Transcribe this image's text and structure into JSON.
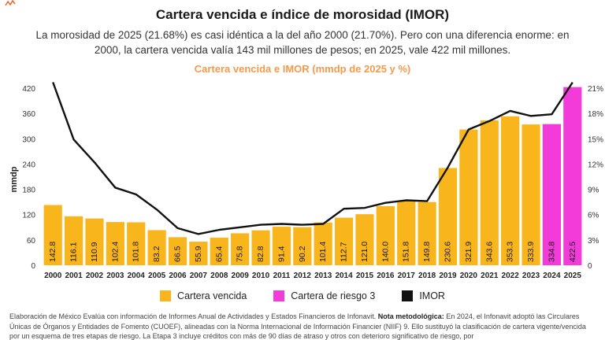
{
  "header": {
    "title": "Cartera vencida e índice de morosidad (IMOR)",
    "subtitle": "La morosidad de 2025 (21.68%) es casi idéntica a la del año 2000 (21.70%). Pero con una diferencia enorme: en 2000, la cartera vencida valía 143 mil millones de pesos; en 2025, vale 422 mil millones."
  },
  "chart_data": {
    "type": "bar",
    "title": "Cartera vencida e IMOR (mmdp de 2025 y %)",
    "ylabel": "mmdp",
    "ylim": [
      0,
      420
    ],
    "y_ticks": [
      "0",
      "60",
      "120",
      "180",
      "240",
      "300",
      "360",
      "420"
    ],
    "y2lim": [
      0,
      21
    ],
    "y2_ticks": [
      "0",
      "3%",
      "6%",
      "9%",
      "12%",
      "15%",
      "18%",
      "21%"
    ],
    "categories": [
      "2000",
      "2001",
      "2002",
      "2003",
      "2004",
      "2005",
      "2006",
      "2007",
      "2008",
      "2009",
      "2010",
      "2011",
      "2012",
      "2013",
      "2014",
      "2015",
      "2016",
      "2017",
      "2018",
      "2019",
      "2020",
      "2021",
      "2022",
      "2023",
      "2024",
      "2025"
    ],
    "series": [
      {
        "name": "Cartera vencida",
        "type": "bar",
        "color": "#f9b51c",
        "values": [
          142.8,
          116.1,
          110.9,
          102.4,
          101.8,
          83.2,
          66.5,
          55.9,
          65.4,
          75.8,
          82.8,
          91.4,
          90.2,
          101.4,
          112.7,
          121.0,
          140.0,
          151.8,
          149.8,
          230.6,
          321.9,
          343.6,
          353.3,
          333.9,
          null,
          null
        ]
      },
      {
        "name": "Cartera de riesgo 3",
        "type": "bar",
        "color": "#f23bd8",
        "values": [
          null,
          null,
          null,
          null,
          null,
          null,
          null,
          null,
          null,
          null,
          null,
          null,
          null,
          null,
          null,
          null,
          null,
          null,
          null,
          null,
          null,
          null,
          null,
          null,
          334.8,
          422.5
        ]
      },
      {
        "name": "IMOR",
        "type": "line",
        "color": "#111111",
        "axis": "right",
        "values": [
          21.7,
          14.9,
          12.2,
          9.2,
          8.4,
          6.6,
          4.4,
          3.7,
          4.2,
          4.5,
          4.8,
          4.9,
          4.8,
          4.9,
          6.7,
          6.8,
          7.4,
          7.7,
          7.6,
          11.6,
          16.1,
          17.1,
          18.3,
          17.7,
          17.9,
          21.68
        ]
      }
    ],
    "legend_position": "bottom",
    "grid": false
  },
  "legend": {
    "items": [
      {
        "label": "Cartera vencida",
        "color": "#f9b51c"
      },
      {
        "label": "Cartera de riesgo 3",
        "color": "#f23bd8"
      },
      {
        "label": "IMOR",
        "color": "#111111"
      }
    ]
  },
  "footnote": {
    "intro": "Elaboración de México Evalúa con información de Informes Anual de Actividades y Estados Financieros de Infonavit.",
    "note_label": "Nota metodológica:",
    "note_text": "En 2024, el Infonavit adoptó las Circulares Únicas de Órganos y Entidades de Fomento (CUOEF), alineadas con la Norma Internacional de Información Financier (NIIF) 9. Ello sustituyó la clasificación de cartera vigente/vencida por un esquema de tres etapas de riesgo. La Etapa 3 incluye créditos con más de 90 días de atraso y otros con deterioro significativo de riesgo, por"
  }
}
